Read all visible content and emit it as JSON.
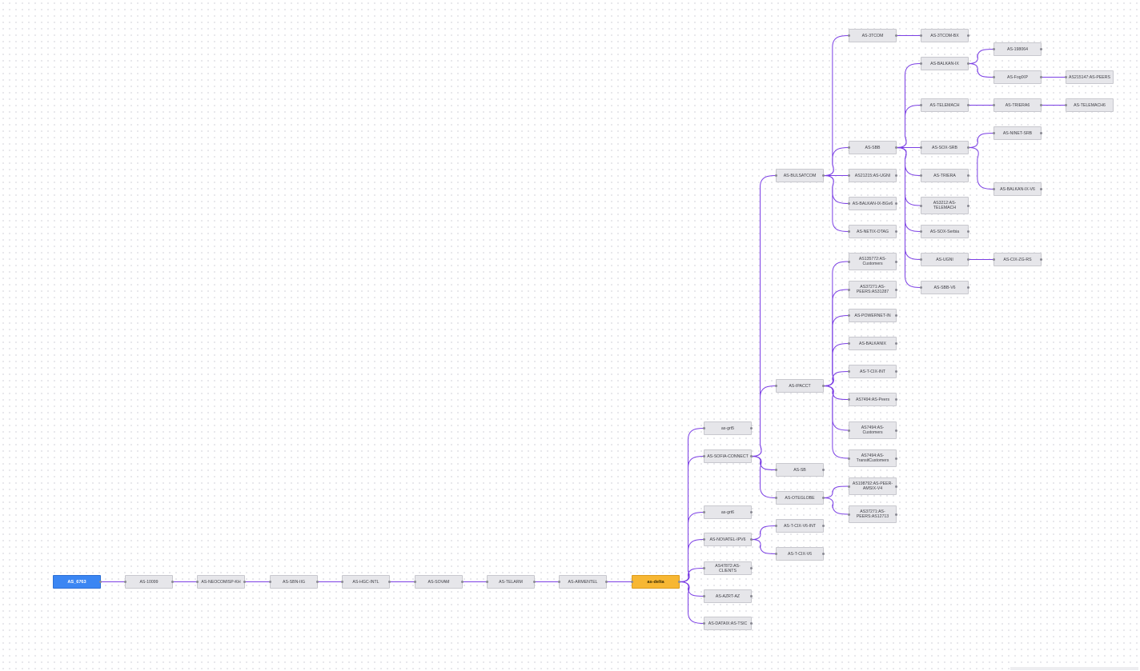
{
  "diagram": {
    "colors": {
      "edge": "#7b3fe4",
      "node": "#e6e6ea",
      "root": "#3b86f3",
      "hub": "#f7b733"
    },
    "nodes": {
      "n0": "AS_6763",
      "n1": "AS-10099",
      "n2": "AS-NEOCOMISP-KH",
      "n3": "AS-SBN-IIG",
      "n4": "AS-HGC-INTL",
      "n5": "AS-SOVAM",
      "n6": "AS-TELARM",
      "n7": "AS-ARMENTEL",
      "n8": "as-delta",
      "n9": "as-grt5",
      "n10": "AS-SOFIA-CONNECT",
      "n11": "as-grt6",
      "n12": "AS-NOVATEL-IPV6",
      "n13": "AS47872:AS-CLIENTS",
      "n14": "AS-AZRT-AZ",
      "n15": "AS-DATAIX:AS-TSIC",
      "n16": "AS-BULSATCOM",
      "n17": "AS-IPACCT",
      "n18": "AS-SB",
      "n19": "AS-OTEGLOBE",
      "n20": "AS-T-CIX-V6-INT",
      "n21": "AS-T-CIX-V6",
      "n22": "AS-3TCOM",
      "n23": "AS-SBB",
      "n24": "AS21215:AS-UGNI",
      "n25": "AS-BALKAN-IX-BGv6",
      "n26": "AS-NETIX-OTAG",
      "n27": "AS135772:AS-Customers",
      "n28": "AS37271:AS-PEERS:AS31287",
      "n29": "AS-POWERNET-IN",
      "n30": "AS-BALKANIX",
      "n31": "AS-T-CIX-INT",
      "n32": "AS7494:AS-Peers",
      "n33": "AS7494:AS-Customers",
      "n34": "AS7494:AS-TransitCustomers",
      "n35": "AS198792:AS-PEER-AMSIX-V4",
      "n36": "AS37271:AS-PEERS:AS12713",
      "n37": "AS-3TCOM-BX",
      "n38": "AS-BALKAN-IX",
      "n39": "AS-TELEMACH",
      "n40": "AS-SOX-SRB",
      "n41": "AS-TRIERA",
      "n42": "AS3212:AS-TELEMACH",
      "n43": "AS-SOX-Serbia",
      "n44": "AS-UGNI",
      "n45": "AS-SBB-V6",
      "n46": "AS-198064",
      "n47": "AS-FogIXP",
      "n48": "AS-TRIERA6",
      "n49": "AS-NINET-SRB",
      "n50": "AS-BALKAN-IX-V6",
      "n51": "AS-CIX-ZG-RS",
      "n52": "AS215147:AS-PEERS",
      "n53": "AS-TELEMACH6"
    }
  }
}
